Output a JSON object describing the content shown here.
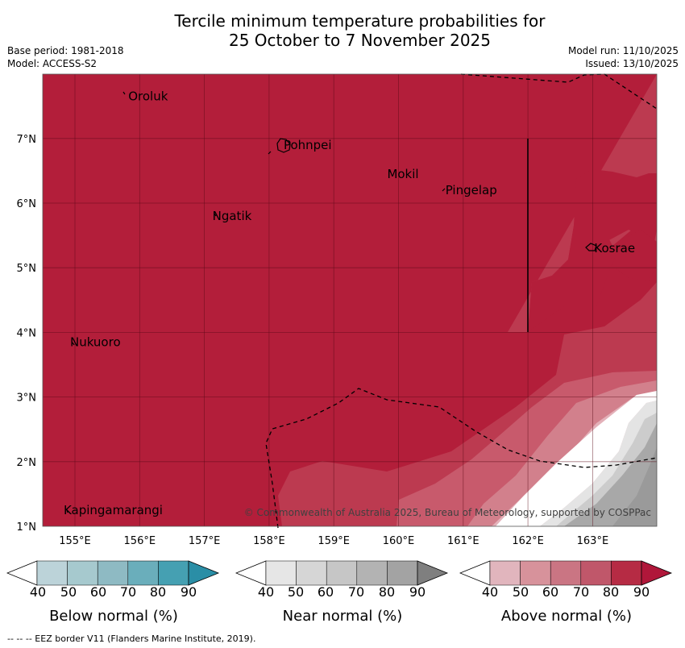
{
  "title": {
    "line1": "Tercile minimum temperature probabilities for",
    "line2": "25 October to 7 November 2025"
  },
  "meta_left": {
    "base_period": "Base period: 1981-2018",
    "model": "Model: ACCESS-S2"
  },
  "meta_right": {
    "model_run": "Model run: 11/10/2025",
    "issued": "Issued: 13/10/2025"
  },
  "map": {
    "lon_ticks": [
      "155°E",
      "156°E",
      "157°E",
      "158°E",
      "159°E",
      "160°E",
      "161°E",
      "162°E",
      "163°E"
    ],
    "lat_ticks": [
      "1°N",
      "2°N",
      "3°N",
      "4°N",
      "5°N",
      "6°N",
      "7°N"
    ],
    "places": [
      {
        "name": "Oroluk",
        "lon": 155.8,
        "lat": 7.65
      },
      {
        "name": "Pohnpei",
        "lon": 158.2,
        "lat": 6.9
      },
      {
        "name": "Mokil",
        "lon": 159.8,
        "lat": 6.45
      },
      {
        "name": "Pingelap",
        "lon": 160.7,
        "lat": 6.2
      },
      {
        "name": "Ngatik",
        "lon": 157.1,
        "lat": 5.8
      },
      {
        "name": "Kosrae",
        "lon": 163.0,
        "lat": 5.3
      },
      {
        "name": "Nukuoro",
        "lon": 154.9,
        "lat": 3.85
      },
      {
        "name": "Kapingamarangi",
        "lon": 154.8,
        "lat": 1.25
      }
    ],
    "copyright": "© Commonwealth of Australia 2025, Bureau of Meteorology, supported by COSPPac"
  },
  "legends": [
    {
      "id": "below",
      "title": "Below normal (%)",
      "colors": [
        "#ffffff",
        "#bcd3d9",
        "#a6c9ce",
        "#8ebac3",
        "#6aaebb",
        "#45a0b2",
        "#2a8ea6"
      ],
      "ticks": [
        "40",
        "50",
        "60",
        "70",
        "80",
        "90"
      ]
    },
    {
      "id": "near",
      "title": "Near normal (%)",
      "colors": [
        "#ffffff",
        "#e6e6e6",
        "#d6d6d6",
        "#c6c6c6",
        "#b3b3b3",
        "#a3a3a3",
        "#7f7f7f"
      ],
      "ticks": [
        "40",
        "50",
        "60",
        "70",
        "80",
        "90"
      ]
    },
    {
      "id": "above",
      "title": "Above normal (%)",
      "colors": [
        "#ffffff",
        "#e1b5bd",
        "#d7929b",
        "#ca7583",
        "#c0576a",
        "#b62b44",
        "#b0173a"
      ],
      "ticks": [
        "40",
        "50",
        "60",
        "70",
        "80",
        "90"
      ]
    }
  ],
  "footnote": "--  --  -- EEZ border V11 (Flanders Marine Institute, 2019)."
}
